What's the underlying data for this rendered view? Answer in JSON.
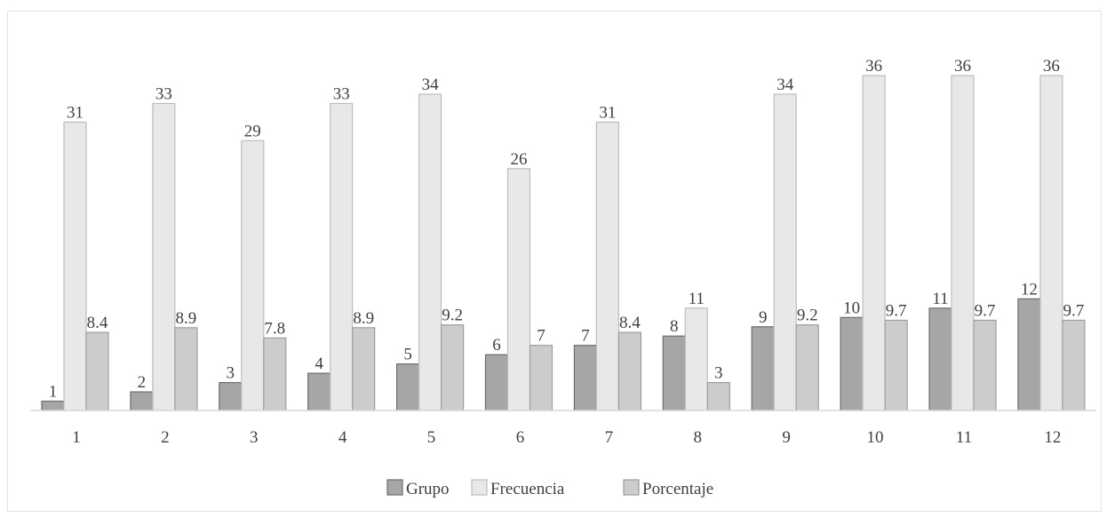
{
  "chart_data": {
    "type": "bar",
    "categories": [
      "1",
      "2",
      "3",
      "4",
      "5",
      "6",
      "7",
      "8",
      "9",
      "10",
      "11",
      "12"
    ],
    "series": [
      {
        "name": "Grupo",
        "values": [
          1,
          2,
          3,
          4,
          5,
          6,
          7,
          8,
          9,
          10,
          11,
          12
        ],
        "color": "#a6a6a6",
        "labels": [
          "1",
          "2",
          "3",
          "4",
          "5",
          "6",
          "7",
          "8",
          "9",
          "10",
          "11",
          "12"
        ]
      },
      {
        "name": "Frecuencia",
        "values": [
          31,
          33,
          29,
          33,
          34,
          26,
          31,
          11,
          34,
          36,
          36,
          36
        ],
        "color": "#e8e8e8",
        "labels": [
          "31",
          "33",
          "29",
          "33",
          "34",
          "26",
          "31",
          "11",
          "34",
          "36",
          "36",
          "36"
        ]
      },
      {
        "name": "Porcentaje",
        "values": [
          8.4,
          8.9,
          7.8,
          8.9,
          9.2,
          7,
          8.4,
          3,
          9.2,
          9.7,
          9.7,
          9.7
        ],
        "color": "#cccccc",
        "labels": [
          "8.4",
          "8.9",
          "7.8",
          "8.9",
          "9.2",
          "7",
          "8.4",
          "3",
          "9.2",
          "9.7",
          "9.7",
          "9.7"
        ]
      }
    ],
    "title": "",
    "xlabel": "",
    "ylabel": "",
    "ylim": [
      0,
      40
    ],
    "grid": false,
    "legend": "bottom"
  }
}
